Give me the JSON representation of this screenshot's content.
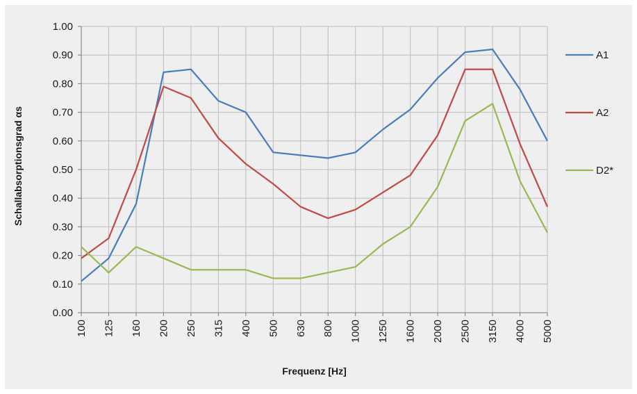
{
  "chart_data": {
    "type": "line",
    "title": "",
    "xlabel": "Frequenz [Hz]",
    "ylabel": "Schallabsorptionsgrad  αs",
    "categories": [
      "100",
      "125",
      "160",
      "200",
      "250",
      "315",
      "400",
      "500",
      "630",
      "800",
      "1000",
      "1250",
      "1600",
      "2000",
      "2500",
      "3150",
      "4000",
      "5000"
    ],
    "ylim": [
      0,
      1
    ],
    "yticks": [
      "0.00",
      "0.10",
      "0.20",
      "0.30",
      "0.40",
      "0.50",
      "0.60",
      "0.70",
      "0.80",
      "0.90",
      "1.00"
    ],
    "grid": true,
    "legend_position": "right",
    "series": [
      {
        "name": "A1",
        "color": "#4a7ebb",
        "values": [
          0.11,
          0.19,
          0.38,
          0.84,
          0.85,
          0.74,
          0.7,
          0.56,
          0.55,
          0.54,
          0.56,
          0.64,
          0.71,
          0.82,
          0.91,
          0.92,
          0.78,
          0.6
        ]
      },
      {
        "name": "A2",
        "color": "#be4b48",
        "values": [
          0.19,
          0.26,
          0.5,
          0.79,
          0.75,
          0.61,
          0.52,
          0.45,
          0.37,
          0.33,
          0.36,
          0.42,
          0.48,
          0.62,
          0.85,
          0.85,
          0.59,
          0.37
        ]
      },
      {
        "name": "D2*",
        "color": "#98b954",
        "values": [
          0.23,
          0.14,
          0.23,
          0.19,
          0.15,
          0.15,
          0.15,
          0.12,
          0.12,
          0.14,
          0.16,
          0.24,
          0.3,
          0.44,
          0.67,
          0.73,
          0.46,
          0.28
        ]
      }
    ]
  }
}
